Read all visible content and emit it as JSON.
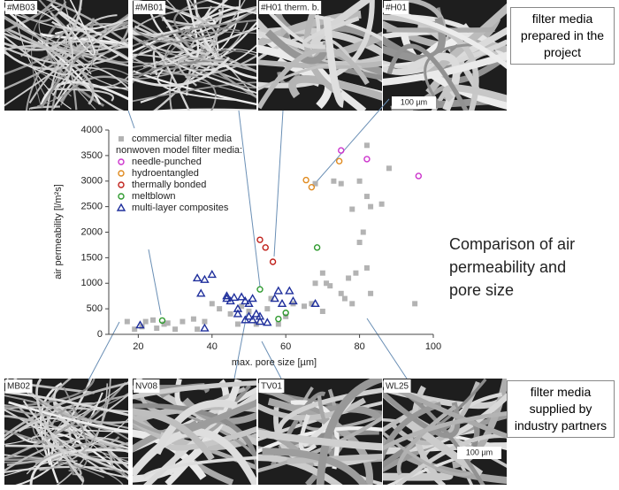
{
  "chart_data": {
    "type": "scatter",
    "x_label": "max. pore size [µm]",
    "y_label": "air permeability [l/m²s]",
    "legend_title": "nonwoven model filter media:",
    "xlim": [
      12,
      100
    ],
    "xticks": [
      20,
      40,
      60,
      80,
      100
    ],
    "ylim": [
      0,
      4000
    ],
    "yticks": [
      0,
      500,
      1000,
      1500,
      2000,
      2500,
      3000,
      3500,
      4000
    ],
    "legend": "upper left",
    "series": [
      {
        "name": "commercial filter media",
        "color": "#b3b3b3",
        "marker": "square",
        "x": [
          17,
          19,
          21,
          22,
          24,
          25,
          27,
          28,
          30,
          32,
          35,
          36,
          38,
          40,
          42,
          45,
          47,
          48,
          50,
          52,
          55,
          56,
          58,
          60,
          62,
          65,
          68,
          70,
          71,
          72,
          75,
          76,
          78,
          79,
          80,
          81,
          82,
          83,
          78,
          80,
          82,
          82,
          86,
          88,
          95,
          73,
          75,
          68,
          77,
          83,
          70,
          67
        ],
        "values": [
          250,
          100,
          150,
          250,
          280,
          120,
          200,
          220,
          100,
          250,
          300,
          100,
          250,
          600,
          500,
          400,
          200,
          550,
          450,
          200,
          500,
          700,
          200,
          350,
          600,
          550,
          1000,
          1200,
          1000,
          950,
          800,
          700,
          600,
          1200,
          1800,
          2000,
          2700,
          2500,
          2450,
          3000,
          3700,
          1300,
          2550,
          3250,
          600,
          3000,
          2950,
          2950,
          1100,
          800,
          450,
          600
        ]
      },
      {
        "name": "needle-punched",
        "color": "#cc33cc",
        "marker": "circle",
        "x": [
          75,
          82,
          96
        ],
        "values": [
          3600,
          3430,
          3100
        ]
      },
      {
        "name": "hydroentangled",
        "color": "#e08a1e",
        "marker": "circle",
        "x": [
          65.5,
          67,
          74.5
        ],
        "values": [
          3020,
          2880,
          3390
        ]
      },
      {
        "name": "thermally bonded",
        "color": "#c0201a",
        "marker": "circle",
        "x": [
          53,
          54.5,
          56.5
        ],
        "values": [
          1850,
          1700,
          1420
        ]
      },
      {
        "name": "meltblown",
        "color": "#2e9a2e",
        "marker": "circle",
        "x": [
          26.5,
          53,
          58,
          60,
          68.5
        ],
        "values": [
          270,
          880,
          300,
          420,
          1700
        ]
      },
      {
        "name": "multi-layer composites",
        "color": "#1f2f9c",
        "marker": "triangle",
        "x": [
          20.5,
          36,
          37,
          38,
          40,
          38,
          44,
          45,
          46,
          47,
          48,
          49,
          50,
          51,
          52,
          50,
          51,
          53,
          55,
          57,
          58,
          59,
          61,
          62,
          68,
          47,
          44,
          49,
          53
        ],
        "values": [
          180,
          1100,
          800,
          1070,
          1170,
          120,
          750,
          650,
          720,
          500,
          730,
          650,
          600,
          700,
          400,
          350,
          280,
          250,
          230,
          700,
          850,
          600,
          850,
          650,
          600,
          400,
          700,
          280,
          350
        ]
      }
    ]
  },
  "images_top": [
    "#MB03",
    "#MB01",
    "#H01 therm. b.",
    "#H01"
  ],
  "images_bottom": [
    "MB02",
    "NV08",
    "TV01",
    "WL25"
  ],
  "scale_bar": "100 µm",
  "caption_top": "filter media prepared in the project",
  "caption_bottom": "filter media supplied by industry partners",
  "side_text": "Comparison of air permeability and pore size"
}
